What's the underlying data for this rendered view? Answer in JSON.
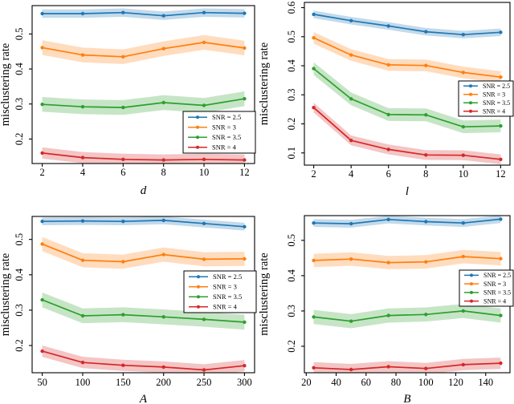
{
  "figure": {
    "background": "#ffffff",
    "axis_color": "#000000",
    "band_opacity": 0.27,
    "marker": "circle",
    "line_style": "solid"
  },
  "colors": {
    "snr_2_5": "#1f77b4",
    "snr_3": "#ff7f0e",
    "snr_3_5": "#2ca02c",
    "snr_4": "#d62728"
  },
  "legend_labels": [
    "SNR = 2.5",
    "SNR = 3",
    "SNR = 3.5",
    "SNR = 4"
  ],
  "chart_data": [
    {
      "type": "line",
      "title": "",
      "xlabel": "d",
      "ylabel": "misclustering rate",
      "x": [
        2,
        4,
        6,
        8,
        10,
        12
      ],
      "xticks": [
        2,
        4,
        6,
        8,
        10,
        12
      ],
      "yticks": [
        0.2,
        0.3,
        0.4,
        0.5
      ],
      "xlim": [
        1.5,
        12.5
      ],
      "ylim": [
        0.13,
        0.581
      ],
      "grid": false,
      "legend_position": "lower right",
      "series": [
        {
          "name": "SNR = 2.5",
          "color": "#1f77b4",
          "values": [
            0.558,
            0.558,
            0.561,
            0.552,
            0.561,
            0.559
          ],
          "band": 0.012
        },
        {
          "name": "SNR = 3",
          "color": "#ff7f0e",
          "values": [
            0.461,
            0.44,
            0.435,
            0.458,
            0.476,
            0.46
          ],
          "band": 0.021
        },
        {
          "name": "SNR = 3.5",
          "color": "#2ca02c",
          "values": [
            0.299,
            0.292,
            0.29,
            0.304,
            0.296,
            0.315
          ],
          "band": 0.021
        },
        {
          "name": "SNR = 4",
          "color": "#d62728",
          "values": [
            0.16,
            0.147,
            0.142,
            0.14,
            0.142,
            0.14
          ],
          "band": 0.016
        }
      ]
    },
    {
      "type": "line",
      "title": "",
      "xlabel": "l",
      "ylabel": "misclustering rate",
      "x": [
        2,
        4,
        6,
        8,
        10,
        12
      ],
      "xticks": [
        2,
        4,
        6,
        8,
        10,
        12
      ],
      "yticks": [
        0.1,
        0.2,
        0.3,
        0.4,
        0.5,
        0.6
      ],
      "xlim": [
        1.5,
        12.5
      ],
      "ylim": [
        0.058,
        0.618
      ],
      "grid": false,
      "legend_position": "center right",
      "series": [
        {
          "name": "SNR = 2.5",
          "color": "#1f77b4",
          "values": [
            0.577,
            0.555,
            0.537,
            0.517,
            0.507,
            0.515
          ],
          "band": 0.013
        },
        {
          "name": "SNR = 3",
          "color": "#ff7f0e",
          "values": [
            0.496,
            0.437,
            0.403,
            0.401,
            0.377,
            0.361
          ],
          "band": 0.02
        },
        {
          "name": "SNR = 3.5",
          "color": "#2ca02c",
          "values": [
            0.39,
            0.286,
            0.232,
            0.231,
            0.19,
            0.193
          ],
          "band": 0.022
        },
        {
          "name": "SNR = 4",
          "color": "#d62728",
          "values": [
            0.256,
            0.143,
            0.112,
            0.093,
            0.092,
            0.078
          ],
          "band": 0.017
        }
      ]
    },
    {
      "type": "line",
      "title": "",
      "xlabel": "A",
      "ylabel": "misclustering rate",
      "x": [
        50,
        100,
        150,
        200,
        250,
        300
      ],
      "xticks": [
        50,
        100,
        150,
        200,
        250,
        300
      ],
      "yticks": [
        0.2,
        0.3,
        0.4,
        0.5
      ],
      "xlim": [
        37.5,
        312.5
      ],
      "ylim": [
        0.123,
        0.565
      ],
      "grid": false,
      "legend_position": "center right",
      "series": [
        {
          "name": "SNR = 2.5",
          "color": "#1f77b4",
          "values": [
            0.551,
            0.552,
            0.551,
            0.554,
            0.545,
            0.536
          ],
          "band": 0.011
        },
        {
          "name": "SNR = 3",
          "color": "#ff7f0e",
          "values": [
            0.487,
            0.441,
            0.437,
            0.457,
            0.444,
            0.445
          ],
          "band": 0.02
        },
        {
          "name": "SNR = 3.5",
          "color": "#2ca02c",
          "values": [
            0.329,
            0.284,
            0.287,
            0.281,
            0.274,
            0.266
          ],
          "band": 0.021
        },
        {
          "name": "SNR = 4",
          "color": "#d62728",
          "values": [
            0.184,
            0.152,
            0.144,
            0.139,
            0.131,
            0.143
          ],
          "band": 0.016
        }
      ]
    },
    {
      "type": "line",
      "title": "",
      "xlabel": "B",
      "ylabel": "misclustering rate",
      "x": [
        25,
        50,
        75,
        100,
        125,
        150
      ],
      "xticks": [
        20,
        40,
        60,
        80,
        100,
        120,
        140
      ],
      "yticks": [
        0.2,
        0.3,
        0.4,
        0.5
      ],
      "xlim": [
        18.75,
        156.25
      ],
      "ylim": [
        0.125,
        0.57
      ],
      "grid": false,
      "legend_position": "center right",
      "series": [
        {
          "name": "SNR = 2.5",
          "color": "#1f77b4",
          "values": [
            0.549,
            0.547,
            0.559,
            0.553,
            0.549,
            0.56
          ],
          "band": 0.011
        },
        {
          "name": "SNR = 3",
          "color": "#ff7f0e",
          "values": [
            0.443,
            0.447,
            0.437,
            0.439,
            0.454,
            0.448
          ],
          "band": 0.019
        },
        {
          "name": "SNR = 3.5",
          "color": "#2ca02c",
          "values": [
            0.283,
            0.271,
            0.287,
            0.29,
            0.3,
            0.287
          ],
          "band": 0.02
        },
        {
          "name": "SNR = 4",
          "color": "#d62728",
          "values": [
            0.139,
            0.134,
            0.142,
            0.137,
            0.148,
            0.152
          ],
          "band": 0.016
        }
      ]
    }
  ]
}
